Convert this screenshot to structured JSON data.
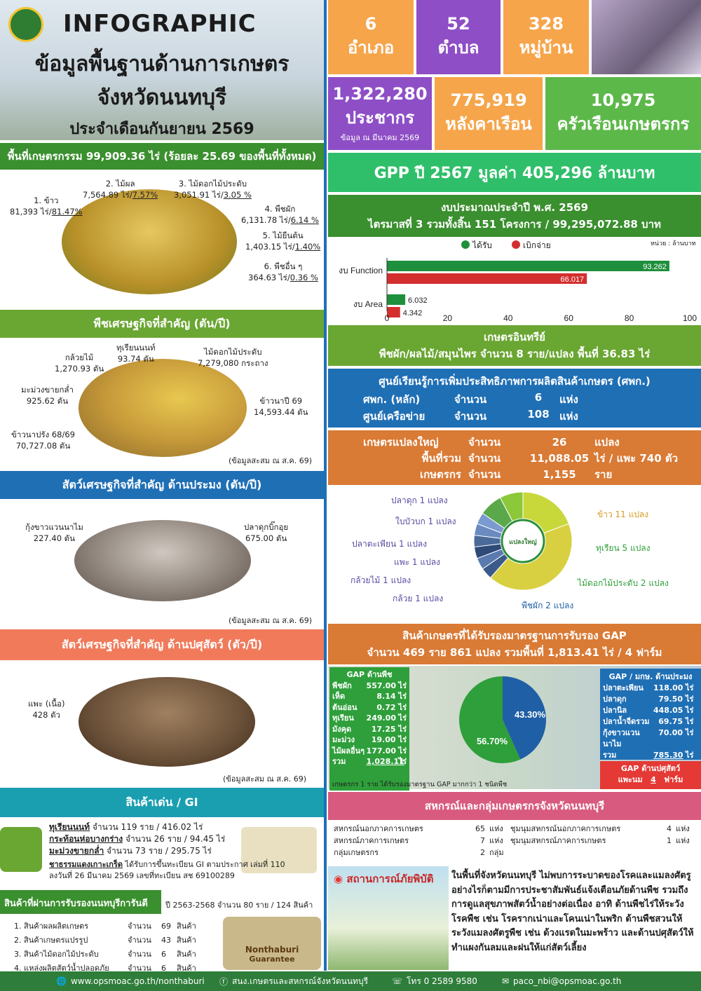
{
  "header": {
    "title": "INFOGRAPHIC",
    "subtitle1": "ข้อมูลพื้นฐานด้านการเกษตร",
    "subtitle2": "จังหวัดนนทบุรี",
    "subtitle3": "ประจำเดือนกันยายน 2569"
  },
  "stats": {
    "amphoe_num": "6",
    "amphoe_label": "อำเภอ",
    "tambon_num": "52",
    "tambon_label": "ตำบล",
    "village_num": "328",
    "village_label": "หมู่บ้าน",
    "pop_num": "1,322,280",
    "pop_label": "ประชากร",
    "pop_note": "ข้อมูล ณ  มีนาคม 2569",
    "house_num": "775,919",
    "house_label": "หลังคาเรือน",
    "farm_num": "10,975",
    "farm_label": "ครัวเรือนเกษตรกร"
  },
  "area": {
    "band": "พื้นที่เกษตรกรรม 99,909.36 ไร่  (ร้อยละ 25.69 ของพื้นที่ทั้งหมด)",
    "items": [
      {
        "name": "1. ข้าว",
        "val": "81,393 ไร่/",
        "pct": "81.47%"
      },
      {
        "name": "2. ไม้ผล",
        "val": "7,564.89 ไร่/",
        "pct": "7.57%"
      },
      {
        "name": "3. ไม้ดอกไม้ประดับ",
        "val": "3,051.91 ไร่/",
        "pct": "3.05 %"
      },
      {
        "name": "4. พืชผัก",
        "val": "6,131.78 ไร่/",
        "pct": "6.14 %"
      },
      {
        "name": "5. ไม้ยืนต้น",
        "val": "1,403.15 ไร่/",
        "pct": "1.40%"
      },
      {
        "name": "6. พืชอื่น ๆ",
        "val": "364.63 ไร่/",
        "pct": "0.36 %"
      }
    ]
  },
  "crops": {
    "band": "พืชเศรษฐกิจที่สำคัญ (ตัน/ปี)",
    "banana": "กล้วยไม้",
    "banana_v": "1,270.93 ตัน",
    "durian": "ทุเรียนนนท์",
    "durian_v": "93.74 ตัน",
    "orn": "ไม้ดอกไม้ประดับ",
    "orn_v": "7,279,080 กระถาง",
    "mango": "มะม่วงขายกล่ำ",
    "mango_v": "925.62 ตัน",
    "rice1": "ข้าวนาปี 69",
    "rice1_v": "14,593.44 ตัน",
    "rice2": "ข้าวนาปรัง 68/69",
    "rice2_v": "70,727.08 ตัน",
    "note": "(ข้อมูลสะสม ณ ส.ค. 69)"
  },
  "fish": {
    "band": "สัตว์เศรษฐกิจที่สำคัญ ด้านประมง (ตัน/ปี)",
    "shrimp": "กุ้งขาวแวนนาไม",
    "shrimp_v": "227.40 ตัน",
    "catfish": "ปลาดุกบิ๊กอุย",
    "catfish_v": "675.00 ตัน",
    "note": "(ข้อมูลสะสม ณ ส.ค. 69)"
  },
  "livestock": {
    "band": "สัตว์เศรษฐกิจที่สำคัญ ด้านปศุสัตว์ (ตัว/ปี)",
    "goat": "แพะ (เนื้อ)",
    "goat_v": "428  ตัว",
    "note": "(ข้อมูลสะสม ณ ส.ค. 69)"
  },
  "gi": {
    "band": "สินค้าเด่น / GI",
    "l1a": "ทุเรียนนนท์",
    "l1b": " จำนวน  119 ราย / 416.02 ไร่",
    "l2a": "กระท้อนห่อบางกร่าง",
    "l2b": " จำนวน  26 ราย / 94.45 ไร่",
    "l3a": "มะม่วงขายกล่ำ",
    "l3b": " จำนวน  73 ราย / 295.75 ไร่",
    "l4a": "ชาธรรมแดงเกาะเกร็ด",
    "l4b": "  ได้รับการขึ้นทะเบียน GI  ตามประกาศ เล่มที่ 110",
    "l5": "ลงวันที่ 26 มีนาคม 2569 เลขที่ทะเบียน สช 69100289"
  },
  "guarantee": {
    "band": "สินค้าที่ผ่านการรับรองนนทบุรีการันตี",
    "period": "ปี 2563-2568  จำนวน 80 ราย / 124 สินค้า",
    "items": [
      {
        "n": "1. สินค้าผลผลิตเกษตร",
        "c": "จำนวน",
        "v": "69",
        "u": "สินค้า"
      },
      {
        "n": "2. สินค้าเกษตรแปรรูป",
        "c": "จำนวน",
        "v": "43",
        "u": "สินค้า"
      },
      {
        "n": "3. สินค้าไม้ดอกไม้ประดับ",
        "c": "จำนวน",
        "v": "6",
        "u": "สินค้า"
      },
      {
        "n": "4. แหล่งผลิตสัตว์น้ำปลอดภัย",
        "c": "จำนวน",
        "v": "6",
        "u": "สินค้า"
      }
    ],
    "badge1": "Nonthaburi",
    "badge2": "Guarantee"
  },
  "gpp": "GPP ปี 2567 มูลค่า 405,296  ล้านบาท",
  "budget": {
    "l1": "งบประมาณประจำปี พ.ศ. 2569",
    "l2": "ไตรมาสที่ 3  รวมทั้งสิ้น  151 โครงการ / 99,295,072.88 บาท",
    "unit": "หน่วย : ล้านบาท"
  },
  "chart_data": {
    "type": "bar",
    "orientation": "horizontal",
    "categories": [
      "งบ Function",
      "งบ Area"
    ],
    "series": [
      {
        "name": "ได้รับ",
        "color": "#1e8f3c",
        "values": [
          93.262,
          6.032
        ]
      },
      {
        "name": "เบิกจ่าย",
        "color": "#d32f2f",
        "values": [
          66.017,
          4.342
        ]
      }
    ],
    "xlim": [
      0,
      100
    ],
    "xticks": [
      "0",
      "20",
      "40",
      "60",
      "80",
      "100"
    ],
    "legend": "top"
  },
  "organic": {
    "l1": "เกษตรอินทรีย์",
    "l2": "พืชผัก/ผลไม้/สมุนไพร  จำนวน  8  ราย/แปลง   พื้นที่  36.83 ไร่"
  },
  "center": {
    "l1": "ศูนย์เรียนรู้การเพิ่มประสิทธิภาพการผลิตสินค้าเกษตร (ศพก.)",
    "r1a": "ศพก. (หลัก)",
    "r1b": "จำนวน",
    "r1c": "6",
    "r1d": "แห่ง",
    "r2a": "ศูนย์เครือข่าย",
    "r2b": "จำนวน",
    "r2c": "108",
    "r2d": "แห่ง"
  },
  "bigplot": {
    "r1a": "เกษตรแปลงใหญ่",
    "r1b": "จำนวน",
    "r1c": "26",
    "r1d": "แปลง",
    "r2a": "พื้นที่รวม",
    "r2b": "จำนวน",
    "r2c": "11,088.05",
    "r2d": "ไร่  /  แพะ 740 ตัว",
    "r3a": "เกษตรกร",
    "r3b": "จำนวน",
    "r3c": "1,155",
    "r3d": "ราย",
    "logo": "แปลงใหญ่"
  },
  "donut": {
    "items": [
      {
        "label": "ปลาดุก 1 แปลง",
        "v": 1
      },
      {
        "label": "ใบบัวบก 1 แปลง",
        "v": 1
      },
      {
        "label": "ปลาตะเพียน 1 แปลง",
        "v": 1
      },
      {
        "label": "แพะ 1 แปลง",
        "v": 1
      },
      {
        "label": "กล้วยไม้ 1 แปลง",
        "v": 1
      },
      {
        "label": "กล้วย 1 แปลง",
        "v": 1
      },
      {
        "label": "พืชผัก 2 แปลง",
        "v": 2
      },
      {
        "label": "ไม้ดอกไม้ประดับ  2 แปลง",
        "v": 2
      },
      {
        "label": "ทุเรียน 5 แปลง",
        "v": 5
      },
      {
        "label": "ข้าว  11 แปลง",
        "v": 11
      }
    ]
  },
  "gap": {
    "l1": "สินค้าเกษตรที่ได้รับรองมาตรฐานการรับรอง GAP",
    "l2": "จำนวน 469 ราย  861 แปลง รวมพื้นที่ 1,813.41 ไร่ / 4 ฟาร์ม",
    "plant_title": "GAP ด้านพืช",
    "plant": [
      {
        "n": "พืชผัก",
        "v": "557.00",
        "u": "ไร่"
      },
      {
        "n": "เห็ด",
        "v": "8.14",
        "u": "ไร่"
      },
      {
        "n": "ต้นอ่อน",
        "v": "0.72",
        "u": "ไร่"
      },
      {
        "n": "ทุเรียน",
        "v": "249.00",
        "u": "ไร่"
      },
      {
        "n": "มังคุด",
        "v": "17.25",
        "u": "ไร่"
      },
      {
        "n": "มะม่วง",
        "v": "19.00",
        "u": "ไร่"
      },
      {
        "n": "ไม้ผลอื่นๆ",
        "v": "177.00",
        "u": "ไร่"
      }
    ],
    "plant_total_n": "รวม",
    "plant_total": "1,028.11",
    "plant_total_u": "ไร่",
    "pie_a": "43.30%",
    "pie_b": "56.70%",
    "fish_title": "GAP / มกษ. ด้านประมง",
    "fish": [
      {
        "n": "ปลาตะเพียน",
        "v": "118.00",
        "u": "ไร่"
      },
      {
        "n": "ปลาดุก",
        "v": "79.50",
        "u": "ไร่"
      },
      {
        "n": "ปลานิล",
        "v": "448.05",
        "u": "ไร่"
      },
      {
        "n": "ปลาน้ำจืดรวม",
        "v": "69.75",
        "u": "ไร่"
      },
      {
        "n": "กุ้งขาวแวนนาไม",
        "v": "70.00",
        "u": "ไร่"
      }
    ],
    "fish_total_n": "รวม",
    "fish_total": "785.30",
    "fish_total_u": "ไร่",
    "live_title": "GAP ด้านปศุสัตว์",
    "live_n": "แพะนม",
    "live_v": "4",
    "live_u": "ฟาร์ม",
    "note": "เกษตรกร 1 ราย ได้รับรองมาตรฐาน GAP มากกว่า 1 ชนิดพืช"
  },
  "coop": {
    "band": "สหกรณ์และกลุ่มเกษตรกรจังหวัดนนทบุรี",
    "rows": [
      {
        "a": "สหกรณ์นอกภาคการเกษตร",
        "b": "65",
        "c": "แห่ง",
        "d": "ชุมนุมสหกรณ์นอกภาคการเกษตร",
        "e": "4",
        "f": "แห่ง"
      },
      {
        "a": "สหกรณ์ภาคการเกษตร",
        "b": "7",
        "c": "แห่ง",
        "d": "ชุมนุมสหกรณ์ภาคการเกษตร",
        "e": "1",
        "f": "แห่ง"
      },
      {
        "a": "กลุ่มเกษตรกร",
        "b": "2",
        "c": "กลุ่ม",
        "d": "",
        "e": "",
        "f": ""
      }
    ]
  },
  "disaster": {
    "title": "สถานการณ์ภัยพิบัติ",
    "text": "ในพื้นที่จังหวัดนนทบุรี ไม่พบการระบาดของโรคและแมลงศัตรู อย่างไรก็ตามมีการประชาสัมพันธ์แจ้งเตือนภัยด้านพืช รวมถึงการดูแลสุขภาพสัตว์น้ำอย่างต่อเนื่อง อาทิ ด้านพืชไร่ให้ระวังโรคพืช เช่น โรครากเน่าและโคนเน่าในพริก ด้านพืชสวนให้ระวังแมลงศัตรูพืช เช่น ด้วงแรดในมะพร้าว และด้านปศุสัตว์ให้ทำแผงกันลมและฝนให้แก่สัตว์เลี้ยง"
  },
  "footer": {
    "web": "www.opsmoac.go.th/nonthaburi",
    "fb": "สนง.เกษตรและสหกรณ์จังหวัดนนทบุรี",
    "tel": "โทร 0 2589 9580",
    "mail": "paco_nbi@opsmoac.go.th"
  }
}
